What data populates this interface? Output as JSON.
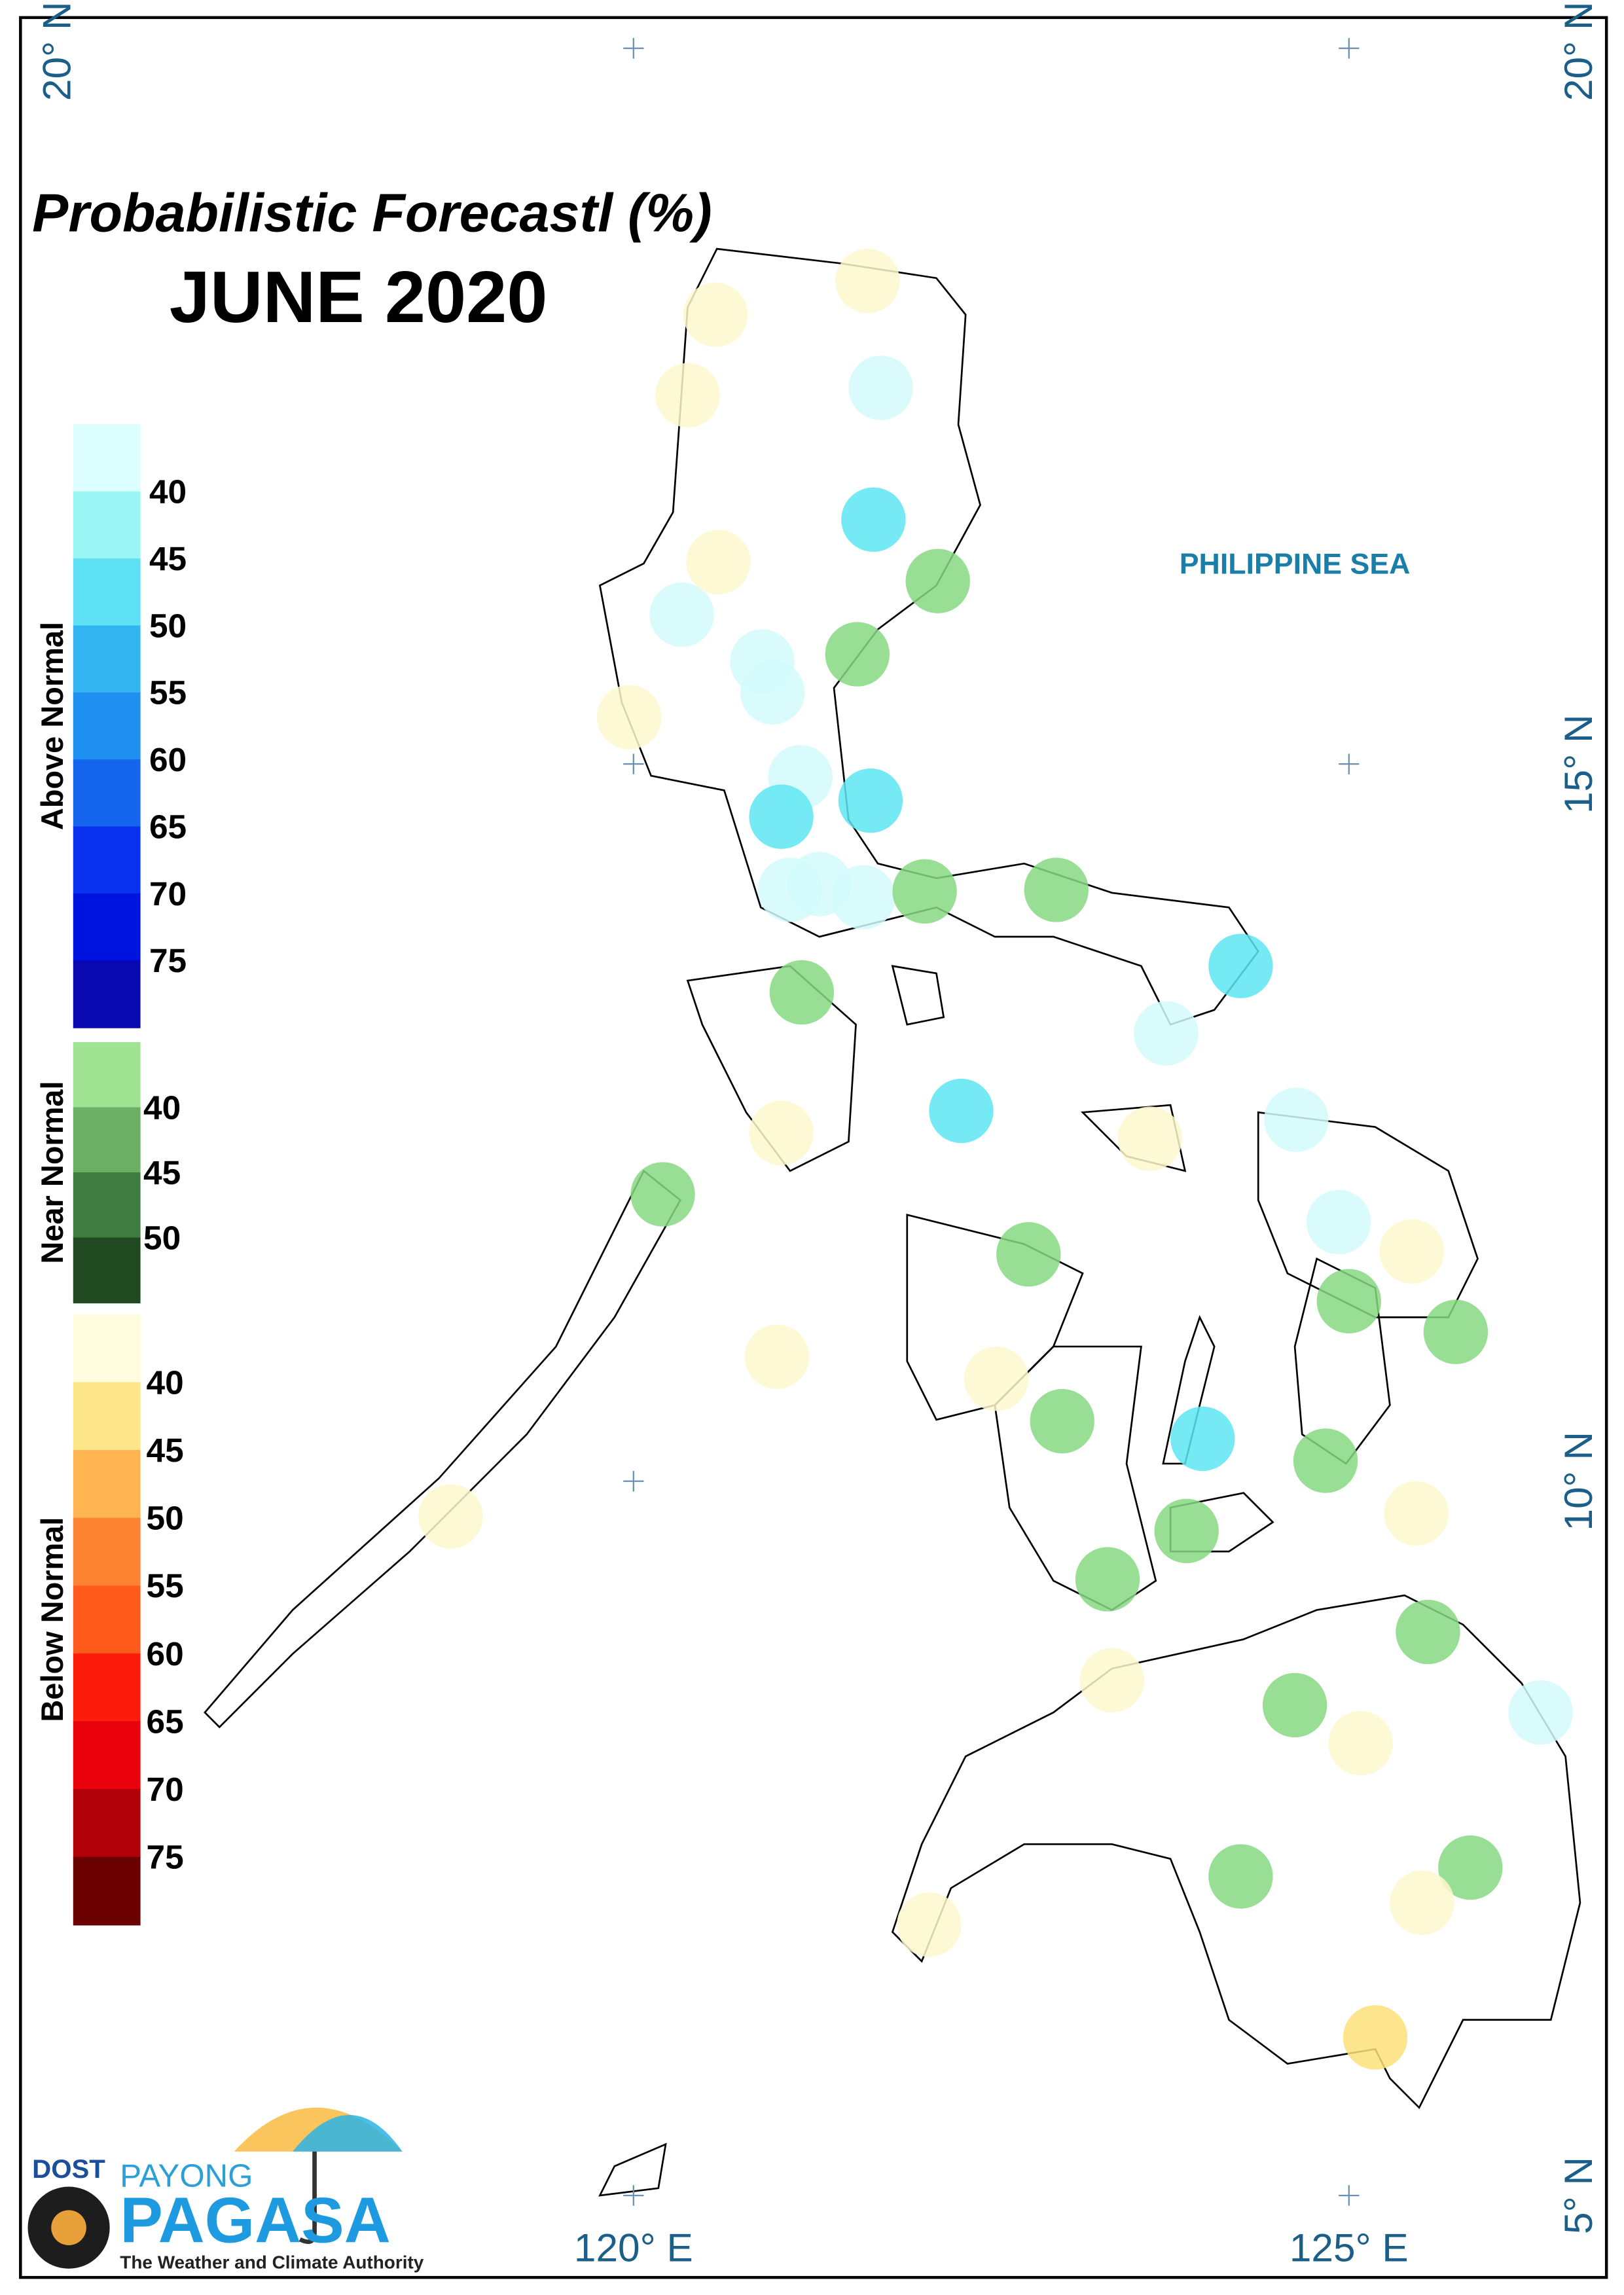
{
  "title": "Probabilistic Forecastl (%)",
  "subtitle": "JUNE 2020",
  "sea_label": "PHILIPPINE SEA",
  "coordinates": {
    "lat_left": "20° N",
    "lat_right": [
      "20° N",
      "15° N",
      "10° N",
      "5° N"
    ],
    "lon": [
      "120° E",
      "125° E"
    ]
  },
  "legend": [
    {
      "title": "Above Normal",
      "labels": [
        "40",
        "45",
        "50",
        "55",
        "60",
        "65",
        "70",
        "75"
      ],
      "colors": [
        "#dcfefe",
        "#9af5f5",
        "#5ee0f5",
        "#32b4f0",
        "#2090f0",
        "#1464ee",
        "#0a30f0",
        "#0014e0",
        "#0a08b0"
      ]
    },
    {
      "title": "Near Normal",
      "labels": [
        "40",
        "45",
        "50"
      ],
      "colors": [
        "#a0e493",
        "#6aaf64",
        "#3e7d3f",
        "#224a22"
      ]
    },
    {
      "title": "Below Normal",
      "labels": [
        "40",
        "45",
        "50",
        "55",
        "60",
        "65",
        "70",
        "75"
      ],
      "colors": [
        "#fefcdc",
        "#fde68a",
        "#fdb451",
        "#fd8231",
        "#fd5a1c",
        "#fd1c0c",
        "#e8000a",
        "#b00008",
        "#6a0000"
      ]
    }
  ],
  "logo": {
    "agency": "DOST",
    "brand_top": "PAYONG",
    "brand": "PAGASA",
    "tagline": "The Weather and Climate Authority"
  }
}
